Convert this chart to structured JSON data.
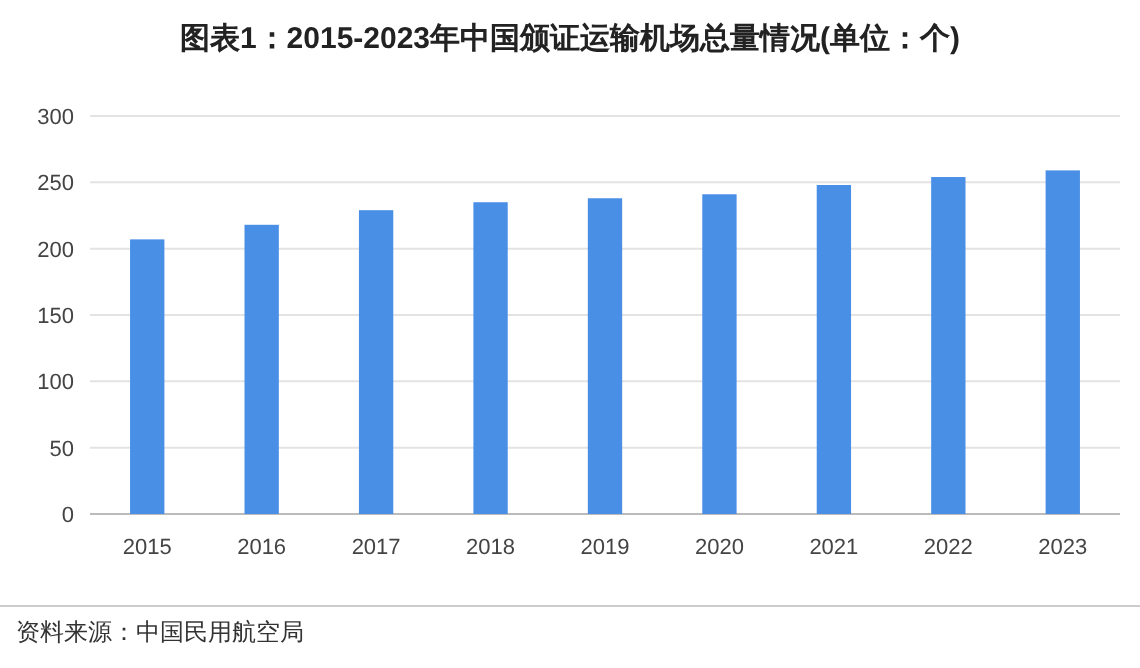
{
  "chart_data": {
    "type": "bar",
    "title": "图表1：2015-2023年中国颁证运输机场总量情况(单位：个)",
    "categories": [
      "2015",
      "2016",
      "2017",
      "2018",
      "2019",
      "2020",
      "2021",
      "2022",
      "2023"
    ],
    "values": [
      207,
      218,
      229,
      235,
      238,
      241,
      248,
      254,
      259
    ],
    "color": "#4a8fe6",
    "ylim": [
      0,
      300
    ],
    "yticks": [
      0,
      50,
      100,
      150,
      200,
      250,
      300
    ],
    "grid": "y",
    "annotations": [
      "资料来源：中国民用航空局"
    ]
  }
}
